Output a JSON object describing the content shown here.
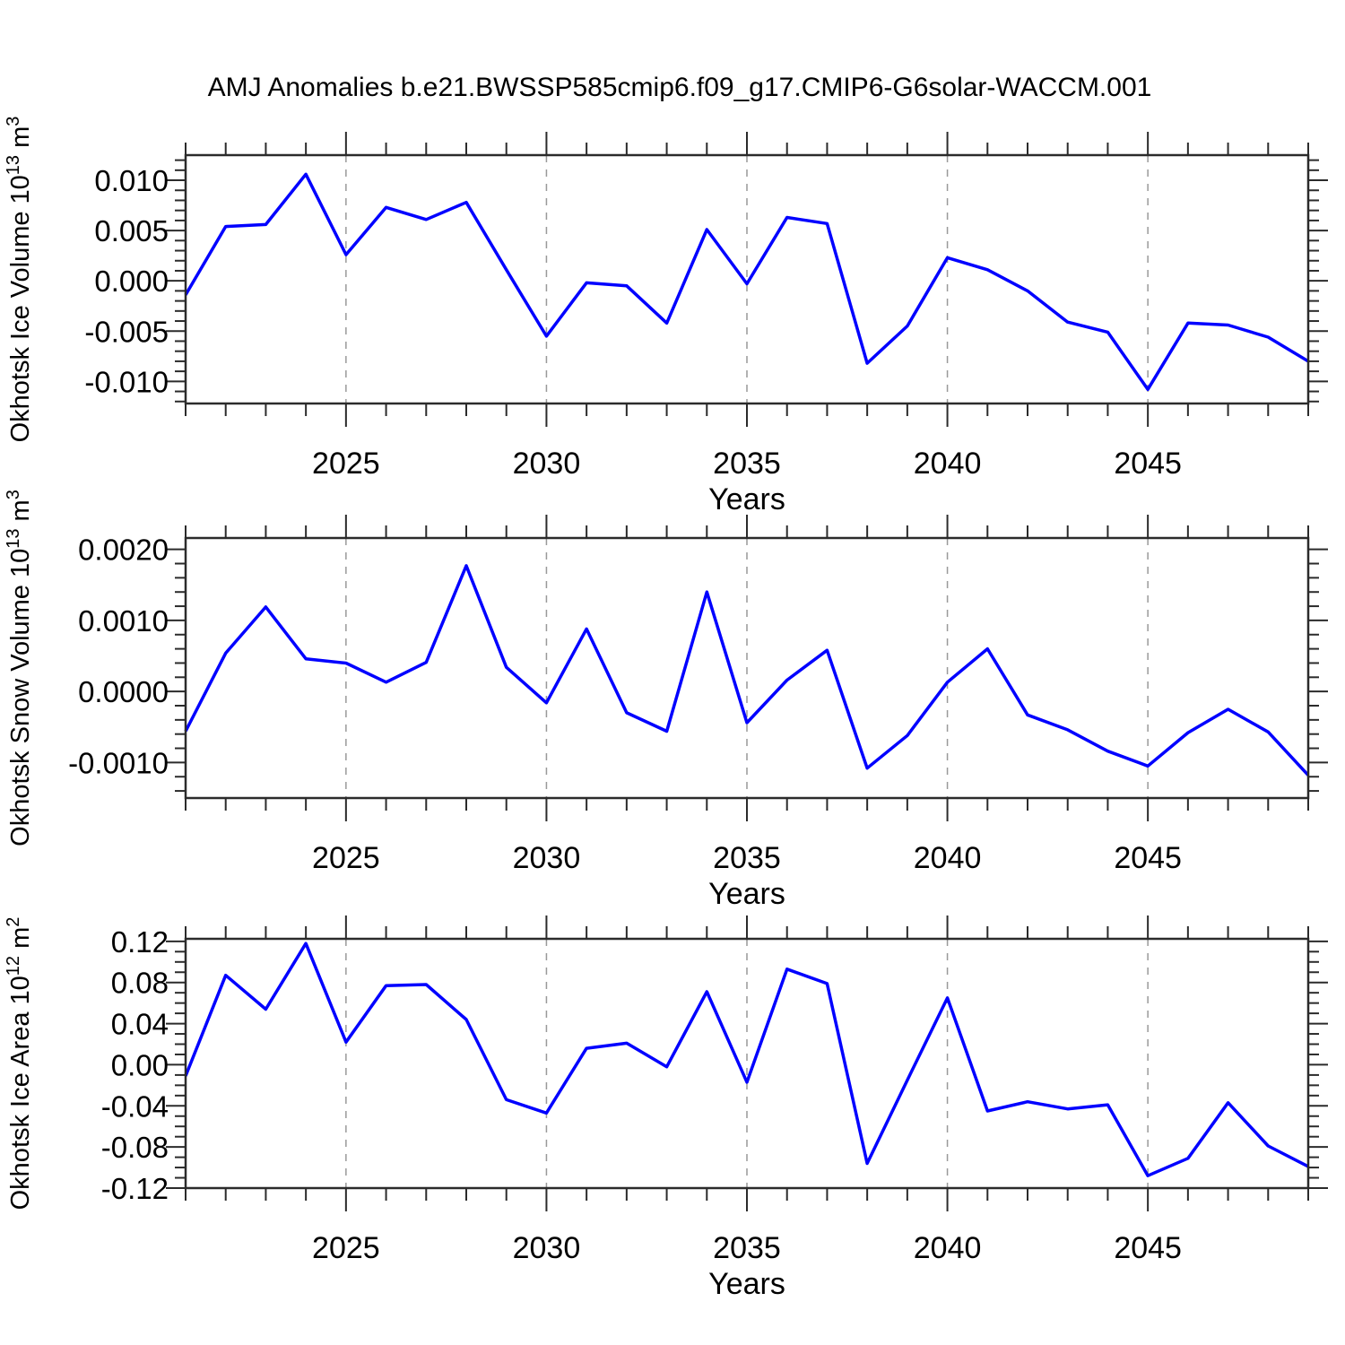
{
  "figure": {
    "title": "AMJ Anomalies b.e21.BWSSP585cmip6.f09_g17.CMIP6-G6solar-WACCM.001",
    "background_color": "#ffffff",
    "line_color": "#0000ff",
    "frame_color": "#2b2b2b",
    "grid_color": "#999999",
    "text_color": "#000000"
  },
  "chart_data": [
    {
      "type": "line",
      "name": "okhotsk-ice-volume",
      "ylabel": "Okhotsk Ice Volume 10^13 m^3",
      "ylabel_parts": [
        [
          "t",
          "Okhotsk Ice Volume 10"
        ],
        [
          "s",
          "13"
        ],
        [
          "t",
          " m"
        ],
        [
          "s",
          "3"
        ]
      ],
      "xlabel": "Years",
      "legend": "none",
      "grid": "vertical-dashed-at-major",
      "xlim": [
        2021,
        2049
      ],
      "ylim": [
        -0.0122,
        0.0125
      ],
      "x_major_step": 5,
      "x_minor_step": 1,
      "y_major_step": 0.005,
      "y_minor_step": 0.001,
      "x_tick_labels": [
        {
          "v": 2025,
          "label": "2025"
        },
        {
          "v": 2030,
          "label": "2030"
        },
        {
          "v": 2035,
          "label": "2035"
        },
        {
          "v": 2040,
          "label": "2040"
        },
        {
          "v": 2045,
          "label": "2045"
        }
      ],
      "y_tick_labels": [
        {
          "v": 0.01,
          "label": "0.010"
        },
        {
          "v": 0.005,
          "label": "0.005"
        },
        {
          "v": 0.0,
          "label": "0.000"
        },
        {
          "v": -0.005,
          "label": "-0.005"
        },
        {
          "v": -0.01,
          "label": "-0.010"
        }
      ],
      "x": [
        2021,
        2022,
        2023,
        2024,
        2025,
        2026,
        2027,
        2028,
        2029,
        2030,
        2031,
        2032,
        2033,
        2034,
        2035,
        2036,
        2037,
        2038,
        2039,
        2040,
        2041,
        2042,
        2043,
        2044,
        2045,
        2046,
        2047,
        2048,
        2049
      ],
      "values": [
        -0.0014,
        0.0054,
        0.0056,
        0.0106,
        0.0026,
        0.0073,
        0.0061,
        0.0078,
        0.0011,
        -0.0055,
        -0.0002,
        -0.0005,
        -0.0042,
        0.0051,
        -0.0003,
        0.0063,
        0.0057,
        -0.0082,
        -0.0045,
        0.0023,
        0.0011,
        -0.001,
        -0.0041,
        -0.0051,
        -0.0108,
        -0.0042,
        -0.0044,
        -0.0056,
        -0.008
      ]
    },
    {
      "type": "line",
      "name": "okhotsk-snow-volume",
      "ylabel": "Okhotsk Snow Volume 10^13 m^3",
      "ylabel_parts": [
        [
          "t",
          "Okhotsk Snow Volume 10"
        ],
        [
          "s",
          "13"
        ],
        [
          "t",
          " m"
        ],
        [
          "s",
          "3"
        ]
      ],
      "xlabel": "Years",
      "legend": "none",
      "grid": "vertical-dashed-at-major",
      "xlim": [
        2021,
        2049
      ],
      "ylim": [
        -0.0015,
        0.00216
      ],
      "x_major_step": 5,
      "x_minor_step": 1,
      "y_major_step": 0.001,
      "y_minor_step": 0.0002,
      "x_tick_labels": [
        {
          "v": 2025,
          "label": "2025"
        },
        {
          "v": 2030,
          "label": "2030"
        },
        {
          "v": 2035,
          "label": "2035"
        },
        {
          "v": 2040,
          "label": "2040"
        },
        {
          "v": 2045,
          "label": "2045"
        }
      ],
      "y_tick_labels": [
        {
          "v": 0.002,
          "label": "0.0020"
        },
        {
          "v": 0.001,
          "label": "0.0010"
        },
        {
          "v": 0.0,
          "label": "0.0000"
        },
        {
          "v": -0.001,
          "label": "-0.0010"
        }
      ],
      "x": [
        2021,
        2022,
        2023,
        2024,
        2025,
        2026,
        2027,
        2028,
        2029,
        2030,
        2031,
        2032,
        2033,
        2034,
        2035,
        2036,
        2037,
        2038,
        2039,
        2040,
        2041,
        2042,
        2043,
        2044,
        2045,
        2046,
        2047,
        2048,
        2049
      ],
      "values": [
        -0.00056,
        0.00054,
        0.00119,
        0.00046,
        0.0004,
        0.00013,
        0.00041,
        0.00177,
        0.00034,
        -0.00016,
        0.00088,
        -0.0003,
        -0.00056,
        0.0014,
        -0.00044,
        0.00016,
        0.00058,
        -0.00108,
        -0.00062,
        0.00013,
        0.0006,
        -0.00033,
        -0.00054,
        -0.00084,
        -0.00105,
        -0.00058,
        -0.00025,
        -0.00057,
        -0.00118
      ]
    },
    {
      "type": "line",
      "name": "okhotsk-ice-area",
      "ylabel": "Okhotsk Ice Area 10^12 m^2",
      "ylabel_parts": [
        [
          "t",
          "Okhotsk Ice Area 10"
        ],
        [
          "s",
          "12"
        ],
        [
          "t",
          " m"
        ],
        [
          "s",
          "2"
        ]
      ],
      "xlabel": "Years",
      "legend": "none",
      "grid": "vertical-dashed-at-major",
      "xlim": [
        2021,
        2049
      ],
      "ylim": [
        -0.12,
        0.1225
      ],
      "x_major_step": 5,
      "x_minor_step": 1,
      "y_major_step": 0.04,
      "y_minor_step": 0.01,
      "x_tick_labels": [
        {
          "v": 2025,
          "label": "2025"
        },
        {
          "v": 2030,
          "label": "2030"
        },
        {
          "v": 2035,
          "label": "2035"
        },
        {
          "v": 2040,
          "label": "2040"
        },
        {
          "v": 2045,
          "label": "2045"
        }
      ],
      "y_tick_labels": [
        {
          "v": 0.12,
          "label": "0.12"
        },
        {
          "v": 0.08,
          "label": "0.08"
        },
        {
          "v": 0.04,
          "label": "0.04"
        },
        {
          "v": 0.0,
          "label": "0.00"
        },
        {
          "v": -0.04,
          "label": "-0.04"
        },
        {
          "v": -0.08,
          "label": "-0.08"
        },
        {
          "v": -0.12,
          "label": "-0.12"
        }
      ],
      "x": [
        2021,
        2022,
        2023,
        2024,
        2025,
        2026,
        2027,
        2028,
        2029,
        2030,
        2031,
        2032,
        2033,
        2034,
        2035,
        2036,
        2037,
        2038,
        2039,
        2040,
        2041,
        2042,
        2043,
        2044,
        2045,
        2046,
        2047,
        2048,
        2049
      ],
      "values": [
        -0.011,
        0.087,
        0.054,
        0.118,
        0.022,
        0.077,
        0.078,
        0.044,
        -0.034,
        -0.047,
        0.016,
        0.021,
        -0.002,
        0.071,
        -0.017,
        0.093,
        0.079,
        -0.096,
        -0.015,
        0.065,
        -0.045,
        -0.036,
        -0.043,
        -0.039,
        -0.108,
        -0.091,
        -0.037,
        -0.079,
        -0.099
      ]
    }
  ]
}
